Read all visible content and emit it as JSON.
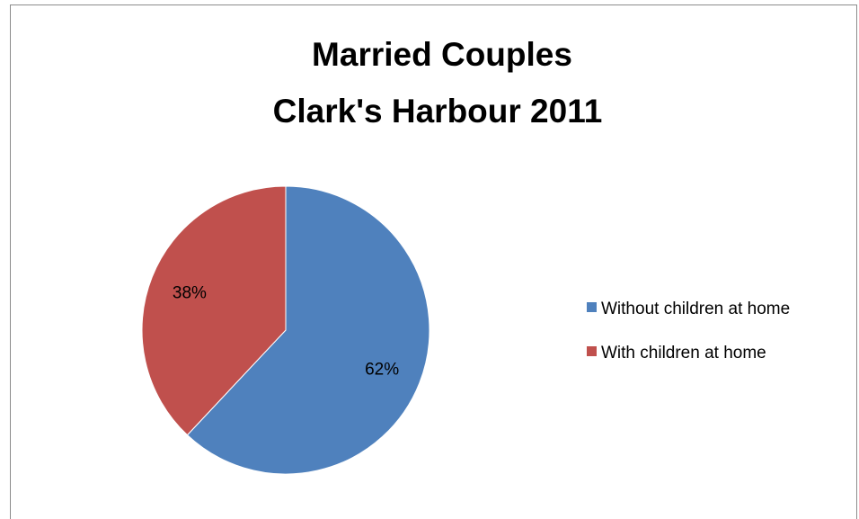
{
  "chart_data": {
    "type": "pie",
    "title": [
      "Married Couples",
      "Clark's Harbour 2011"
    ],
    "categories": [
      "Without children at home",
      "With children at home"
    ],
    "values": [
      62,
      38
    ],
    "data_labels": [
      "62%",
      "38%"
    ],
    "colors": [
      "#4f81bd",
      "#c0504d"
    ],
    "start_angle_deg": 0,
    "direction": "clockwise",
    "legend": {
      "placement": "right",
      "entries": [
        "Without children at home",
        "With children at home"
      ]
    },
    "grid": false
  }
}
